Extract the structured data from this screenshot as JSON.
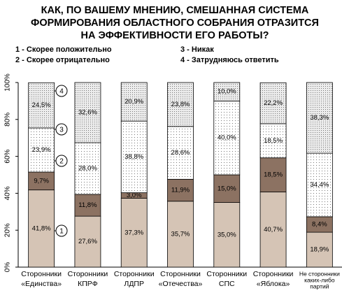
{
  "chart_data": {
    "type": "stacked_bar",
    "title": [
      "КАК, ПО ВАШЕМУ МНЕНИЮ, СМЕШАННАЯ СИСТЕМА",
      "ФОРМИРОВАНИЯ ОБЛАСТНОГО СОБРАНИЯ ОТРАЗИТСЯ",
      "НА ЭФФЕКТИВНОСТИ ЕГО РАБОТЫ?"
    ],
    "categories": [
      [
        "Сторонники",
        "«Единства»"
      ],
      [
        "Сторонники",
        "КПРФ"
      ],
      [
        "Сторонники",
        "ЛДПР"
      ],
      [
        "Сторонники",
        "«Отечества»"
      ],
      [
        "Сторонники",
        "СПС"
      ],
      [
        "Сторонники",
        "«Яблока»"
      ],
      [
        "Не сторонники",
        "каких-либо",
        "партий"
      ]
    ],
    "series": [
      {
        "name": "1 - Скорее положительно",
        "color": "#d5c4b5",
        "values": [
          41.8,
          27.6,
          37.3,
          35.7,
          35.0,
          40.7,
          18.9
        ],
        "value_labels": [
          "41,8%",
          "27,6%",
          "37,3%",
          "35,7%",
          "35,0%",
          "40,7%",
          "18,9%"
        ]
      },
      {
        "name": "2 - Скорее отрицательно",
        "color": "#8c7262",
        "values": [
          9.7,
          11.8,
          3.0,
          11.9,
          15.0,
          18.5,
          8.4
        ],
        "value_labels": [
          "9,7%",
          "11,8%",
          "3,0%",
          "11,9%",
          "15,0%",
          "18,5%",
          "8,4%"
        ]
      },
      {
        "name": "3 - Никак",
        "color": "#ffffff",
        "values": [
          23.9,
          28.0,
          38.8,
          28.6,
          40.0,
          18.5,
          34.4
        ],
        "value_labels": [
          "23,9%",
          "28,0%",
          "38,8%",
          "28,6%",
          "40,0%",
          "18,5%",
          "34,4%"
        ]
      },
      {
        "name": "4 - Затрудняюсь ответить",
        "color": "#ececec",
        "values": [
          24.5,
          32.6,
          20.9,
          23.8,
          10.0,
          22.2,
          38.3
        ],
        "value_labels": [
          "24,5%",
          "32,6%",
          "20,9%",
          "23,8%",
          "10,0%",
          "22,2%",
          "38,3%"
        ]
      }
    ],
    "annotations": [
      "1",
      "2",
      "3",
      "4"
    ],
    "ylim": [
      0,
      100
    ],
    "yticks": [
      {
        "value": 0,
        "label": "0%"
      },
      {
        "value": 20,
        "label": "20%"
      },
      {
        "value": 40,
        "label": "40%"
      },
      {
        "value": 60,
        "label": "60%"
      },
      {
        "value": 80,
        "label": "80%"
      },
      {
        "value": 100,
        "label": "100%"
      }
    ],
    "grid": false
  }
}
